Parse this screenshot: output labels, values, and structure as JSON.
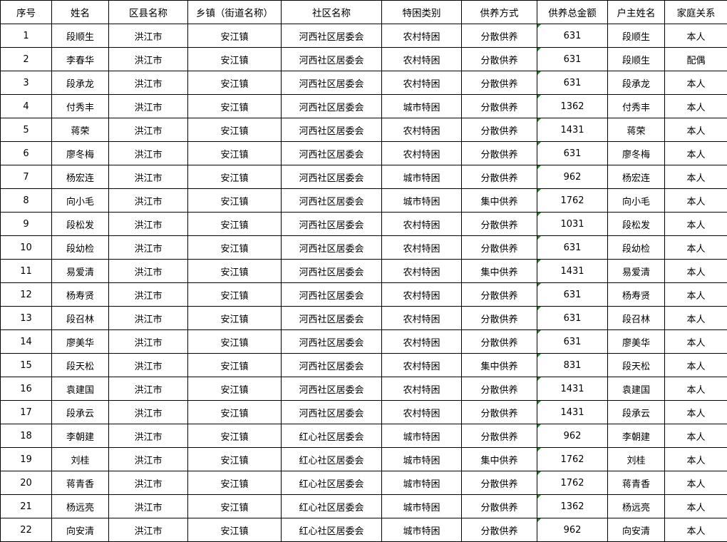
{
  "headers": [
    "序号",
    "姓名",
    "区县名称",
    "乡镇（街道名称）",
    "社区名称",
    "特困类别",
    "供养方式",
    "供养总金额",
    "户主姓名",
    "家庭关系"
  ],
  "rows": [
    [
      "1",
      "段顺生",
      "洪江市",
      "安江镇",
      "河西社区居委会",
      "农村特困",
      "分散供养",
      "631",
      "段顺生",
      "本人"
    ],
    [
      "2",
      "李春华",
      "洪江市",
      "安江镇",
      "河西社区居委会",
      "农村特困",
      "分散供养",
      "631",
      "段顺生",
      "配偶"
    ],
    [
      "3",
      "段承龙",
      "洪江市",
      "安江镇",
      "河西社区居委会",
      "农村特困",
      "分散供养",
      "631",
      "段承龙",
      "本人"
    ],
    [
      "4",
      "付秀丰",
      "洪江市",
      "安江镇",
      "河西社区居委会",
      "城市特困",
      "分散供养",
      "1362",
      "付秀丰",
      "本人"
    ],
    [
      "5",
      "蒋荣",
      "洪江市",
      "安江镇",
      "河西社区居委会",
      "农村特困",
      "分散供养",
      "1431",
      "蒋荣",
      "本人"
    ],
    [
      "6",
      "廖冬梅",
      "洪江市",
      "安江镇",
      "河西社区居委会",
      "农村特困",
      "分散供养",
      "631",
      "廖冬梅",
      "本人"
    ],
    [
      "7",
      "杨宏连",
      "洪江市",
      "安江镇",
      "河西社区居委会",
      "城市特困",
      "分散供养",
      "962",
      "杨宏连",
      "本人"
    ],
    [
      "8",
      "向小毛",
      "洪江市",
      "安江镇",
      "河西社区居委会",
      "城市特困",
      "集中供养",
      "1762",
      "向小毛",
      "本人"
    ],
    [
      "9",
      "段松发",
      "洪江市",
      "安江镇",
      "河西社区居委会",
      "农村特困",
      "分散供养",
      "1031",
      "段松发",
      "本人"
    ],
    [
      "10",
      "段幼检",
      "洪江市",
      "安江镇",
      "河西社区居委会",
      "农村特困",
      "分散供养",
      "631",
      "段幼检",
      "本人"
    ],
    [
      "11",
      "易爱清",
      "洪江市",
      "安江镇",
      "河西社区居委会",
      "农村特困",
      "集中供养",
      "1431",
      "易爱清",
      "本人"
    ],
    [
      "12",
      "杨寿贤",
      "洪江市",
      "安江镇",
      "河西社区居委会",
      "农村特困",
      "分散供养",
      "631",
      "杨寿贤",
      "本人"
    ],
    [
      "13",
      "段召林",
      "洪江市",
      "安江镇",
      "河西社区居委会",
      "农村特困",
      "分散供养",
      "631",
      "段召林",
      "本人"
    ],
    [
      "14",
      "廖美华",
      "洪江市",
      "安江镇",
      "河西社区居委会",
      "农村特困",
      "分散供养",
      "631",
      "廖美华",
      "本人"
    ],
    [
      "15",
      "段天松",
      "洪江市",
      "安江镇",
      "河西社区居委会",
      "农村特困",
      "集中供养",
      "831",
      "段天松",
      "本人"
    ],
    [
      "16",
      "袁建国",
      "洪江市",
      "安江镇",
      "河西社区居委会",
      "农村特困",
      "分散供养",
      "1431",
      "袁建国",
      "本人"
    ],
    [
      "17",
      "段承云",
      "洪江市",
      "安江镇",
      "河西社区居委会",
      "农村特困",
      "分散供养",
      "1431",
      "段承云",
      "本人"
    ],
    [
      "18",
      "李朝建",
      "洪江市",
      "安江镇",
      "红心社区居委会",
      "城市特困",
      "分散供养",
      "962",
      "李朝建",
      "本人"
    ],
    [
      "19",
      "刘桂",
      "洪江市",
      "安江镇",
      "红心社区居委会",
      "城市特困",
      "集中供养",
      "1762",
      "刘桂",
      "本人"
    ],
    [
      "20",
      "蒋青香",
      "洪江市",
      "安江镇",
      "红心社区居委会",
      "城市特困",
      "分散供养",
      "1762",
      "蒋青香",
      "本人"
    ],
    [
      "21",
      "杨远亮",
      "洪江市",
      "安江镇",
      "红心社区居委会",
      "城市特困",
      "分散供养",
      "1362",
      "杨远亮",
      "本人"
    ],
    [
      "22",
      "向安清",
      "洪江市",
      "安江镇",
      "红心社区居委会",
      "城市特困",
      "分散供养",
      "962",
      "向安清",
      "本人"
    ]
  ]
}
